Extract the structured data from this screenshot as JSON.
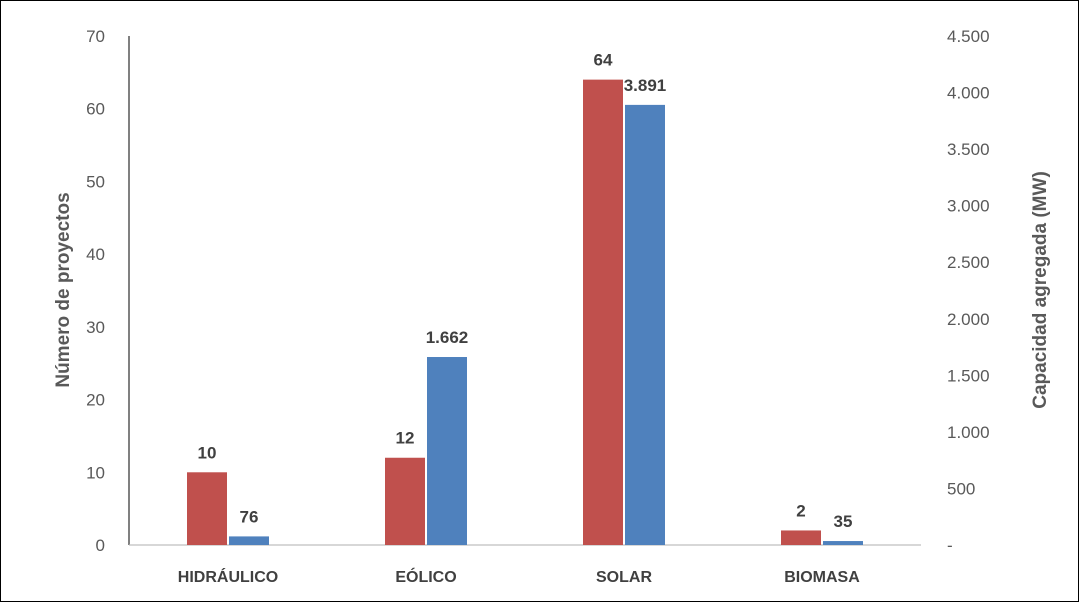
{
  "chart_data": {
    "type": "bar",
    "categories": [
      "HIDRÁULICO",
      "EÓLICO",
      "SOLAR",
      "BIOMASA"
    ],
    "series": [
      {
        "name": "",
        "axis": "left",
        "color": "#C0504D",
        "values": [
          10,
          12,
          64,
          2
        ],
        "labels": [
          "10",
          "12",
          "64",
          "2"
        ]
      },
      {
        "name": "",
        "axis": "right",
        "color": "#4F81BD",
        "values": [
          76,
          1662,
          3891,
          35
        ],
        "labels": [
          "76",
          "1.662",
          "3.891",
          "35"
        ]
      }
    ],
    "ylabel": "Número de proyectos",
    "y2label": "Capacidad agregada (MW)",
    "ylim": [
      0,
      70
    ],
    "y2lim": [
      0,
      4500
    ],
    "yticks": [
      0,
      10,
      20,
      30,
      40,
      50,
      60,
      70
    ],
    "y2ticks": [
      0,
      500,
      1000,
      1500,
      2000,
      2500,
      3000,
      3500,
      4000,
      4500
    ],
    "y2tick_labels": [
      "-",
      "500",
      "1.000",
      "1.500",
      "2.000",
      "2.500",
      "3.000",
      "3.500",
      "4.000",
      "4.500"
    ],
    "grid": false,
    "legend": "none"
  }
}
